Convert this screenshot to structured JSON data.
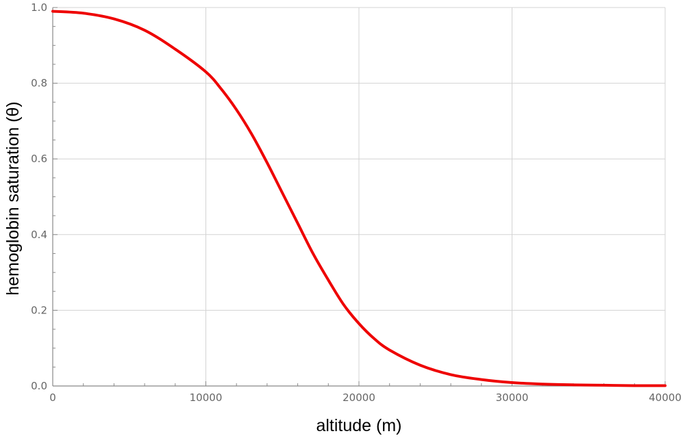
{
  "chart_data": {
    "type": "line",
    "title": "",
    "xlabel": "altitude (m)",
    "ylabel": "hemoglobin saturation (θ)",
    "xlim": [
      0,
      40000
    ],
    "ylim": [
      0,
      1.0
    ],
    "x_ticks": [
      0,
      10000,
      20000,
      30000,
      40000
    ],
    "x_tick_labels": [
      "0",
      "10000",
      "20000",
      "30000",
      "40000"
    ],
    "y_ticks": [
      0.0,
      0.2,
      0.4,
      0.6,
      0.8,
      1.0
    ],
    "y_tick_labels": [
      "0.0",
      "0.2",
      "0.4",
      "0.6",
      "0.8",
      "1.0"
    ],
    "grid": true,
    "line_color": "#ee0000",
    "series": [
      {
        "x": [
          0,
          2000,
          4000,
          6000,
          8000,
          10000,
          11000,
          12000,
          13000,
          14000,
          15000,
          16000,
          17000,
          18000,
          19000,
          20000,
          21000,
          22000,
          24000,
          26000,
          28000,
          30000,
          32000,
          34000,
          36000,
          38000,
          40000
        ],
        "y": [
          0.99,
          0.985,
          0.97,
          0.94,
          0.89,
          0.83,
          0.785,
          0.73,
          0.665,
          0.59,
          0.51,
          0.43,
          0.35,
          0.28,
          0.215,
          0.165,
          0.125,
          0.095,
          0.055,
          0.03,
          0.017,
          0.009,
          0.005,
          0.003,
          0.002,
          0.001,
          0.001
        ]
      }
    ]
  }
}
